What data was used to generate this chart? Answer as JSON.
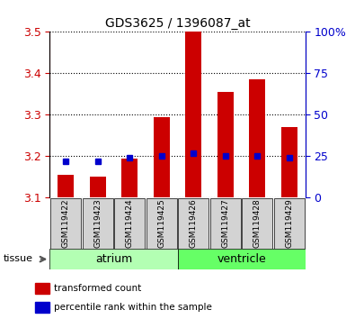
{
  "title": "GDS3625 / 1396087_at",
  "samples": [
    "GSM119422",
    "GSM119423",
    "GSM119424",
    "GSM119425",
    "GSM119426",
    "GSM119427",
    "GSM119428",
    "GSM119429"
  ],
  "transformed_counts": [
    3.155,
    3.15,
    3.195,
    3.295,
    3.5,
    3.355,
    3.385,
    3.27
  ],
  "percentile_ranks": [
    22,
    22,
    24,
    25,
    27,
    25,
    25,
    24
  ],
  "bar_bottom": 3.1,
  "ylim": [
    3.1,
    3.5
  ],
  "ylim_right": [
    0,
    100
  ],
  "yticks_left": [
    3.1,
    3.2,
    3.3,
    3.4,
    3.5
  ],
  "yticks_right": [
    0,
    25,
    50,
    75,
    100
  ],
  "ytick_right_labels": [
    "0",
    "25",
    "50",
    "75",
    "100%"
  ],
  "groups": [
    {
      "name": "atrium",
      "indices": [
        0,
        1,
        2,
        3
      ],
      "color": "#b3ffb3"
    },
    {
      "name": "ventricle",
      "indices": [
        4,
        5,
        6,
        7
      ],
      "color": "#66ff66"
    }
  ],
  "bar_color": "#CC0000",
  "percentile_color": "#0000CC",
  "xticklabels_bg": "#d3d3d3",
  "tissue_label": "tissue",
  "legend_items": [
    {
      "label": "transformed count",
      "color": "#CC0000"
    },
    {
      "label": "percentile rank within the sample",
      "color": "#0000CC"
    }
  ],
  "left_axis_color": "#CC0000",
  "right_axis_color": "#0000CC"
}
